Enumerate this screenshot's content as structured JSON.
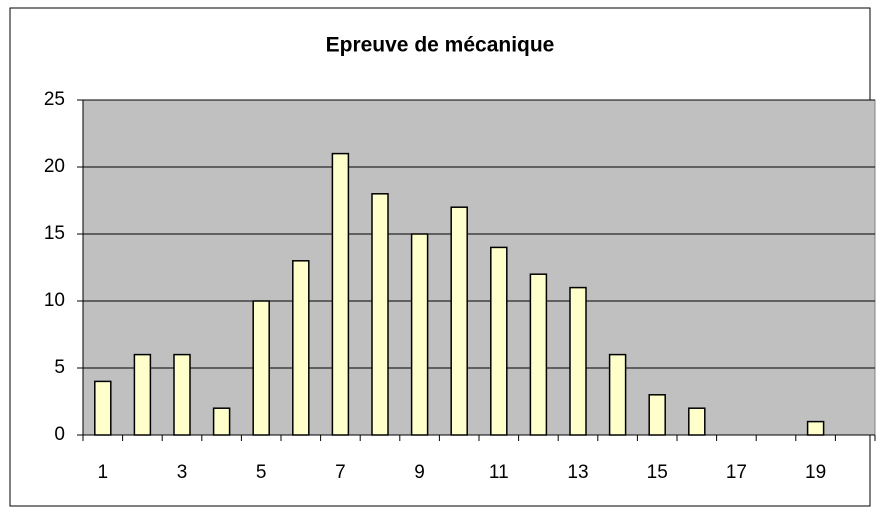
{
  "chart_data": {
    "type": "bar",
    "title": "Epreuve de mécanique",
    "categories": [
      "1",
      null,
      "3",
      null,
      "5",
      null,
      "7",
      null,
      "9",
      null,
      "11",
      null,
      "13",
      null,
      "15",
      null,
      "17",
      null,
      "19",
      null
    ],
    "values": [
      4,
      6,
      6,
      2,
      10,
      13,
      21,
      18,
      15,
      17,
      14,
      12,
      11,
      6,
      3,
      2,
      0,
      0,
      1,
      0
    ],
    "color": "#ffffcc",
    "ylim": [
      0,
      25
    ],
    "yticks": [
      0,
      5,
      10,
      15,
      20,
      25
    ],
    "grid": true
  }
}
